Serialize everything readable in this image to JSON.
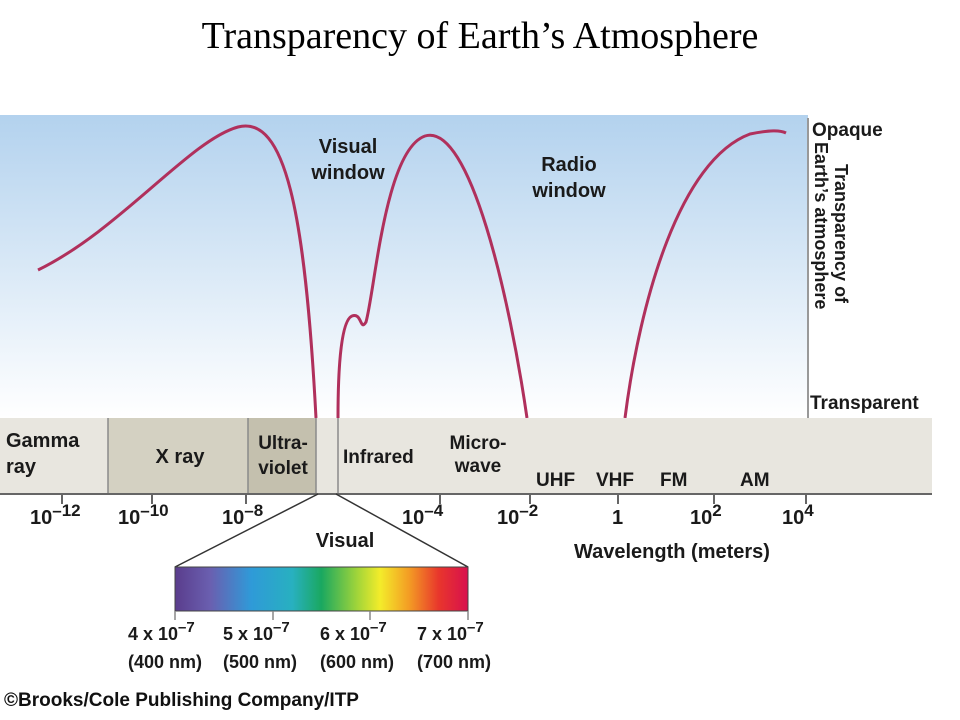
{
  "title": "Transparency of Earth’s Atmosphere",
  "diagram": {
    "windows": {
      "visual": [
        "Visual",
        "window"
      ],
      "radio": [
        "Radio",
        "window"
      ]
    },
    "right_axis": {
      "top": "Opaque",
      "bottom": "Transparent",
      "label": [
        "Earth’s atmosphere",
        "Transparency of"
      ]
    },
    "bands": {
      "gamma": [
        "Gamma",
        "ray"
      ],
      "xray": "X ray",
      "ultraviolet": [
        "Ultra-",
        "violet"
      ],
      "infrared": "Infrared",
      "microwave": [
        "Micro-",
        "wave"
      ],
      "uhf": "UHF",
      "vhf": "VHF",
      "fm": "FM",
      "am": "AM"
    },
    "wavelength_ticks": [
      {
        "base": "10",
        "exp": "–12"
      },
      {
        "base": "10",
        "exp": "–10"
      },
      {
        "base": "10",
        "exp": "–8"
      },
      {
        "base": "10",
        "exp": "–4"
      },
      {
        "base": "10",
        "exp": "–2"
      },
      {
        "base": "1",
        "exp": ""
      },
      {
        "base": "10",
        "exp": "2"
      },
      {
        "base": "10",
        "exp": "4"
      }
    ],
    "axis_label": "Wavelength (meters)",
    "visual_label": "Visual",
    "spectrum_ticks": [
      {
        "base": "4 x 10",
        "exp": "–7",
        "nm": "(400 nm)"
      },
      {
        "base": "5 x 10",
        "exp": "–7",
        "nm": "(500 nm)"
      },
      {
        "base": "6 x 10",
        "exp": "–7",
        "nm": "(600 nm)"
      },
      {
        "base": "7 x 10",
        "exp": "–7",
        "nm": "(700 nm)"
      }
    ],
    "colors": {
      "curve": "#b0305c",
      "sky_top": "#b3d2ee",
      "band_strip": "#e8e6df",
      "band_shaded": "#d4d1c2"
    }
  },
  "credit": "©Brooks/Cole Publishing Company/ITP"
}
